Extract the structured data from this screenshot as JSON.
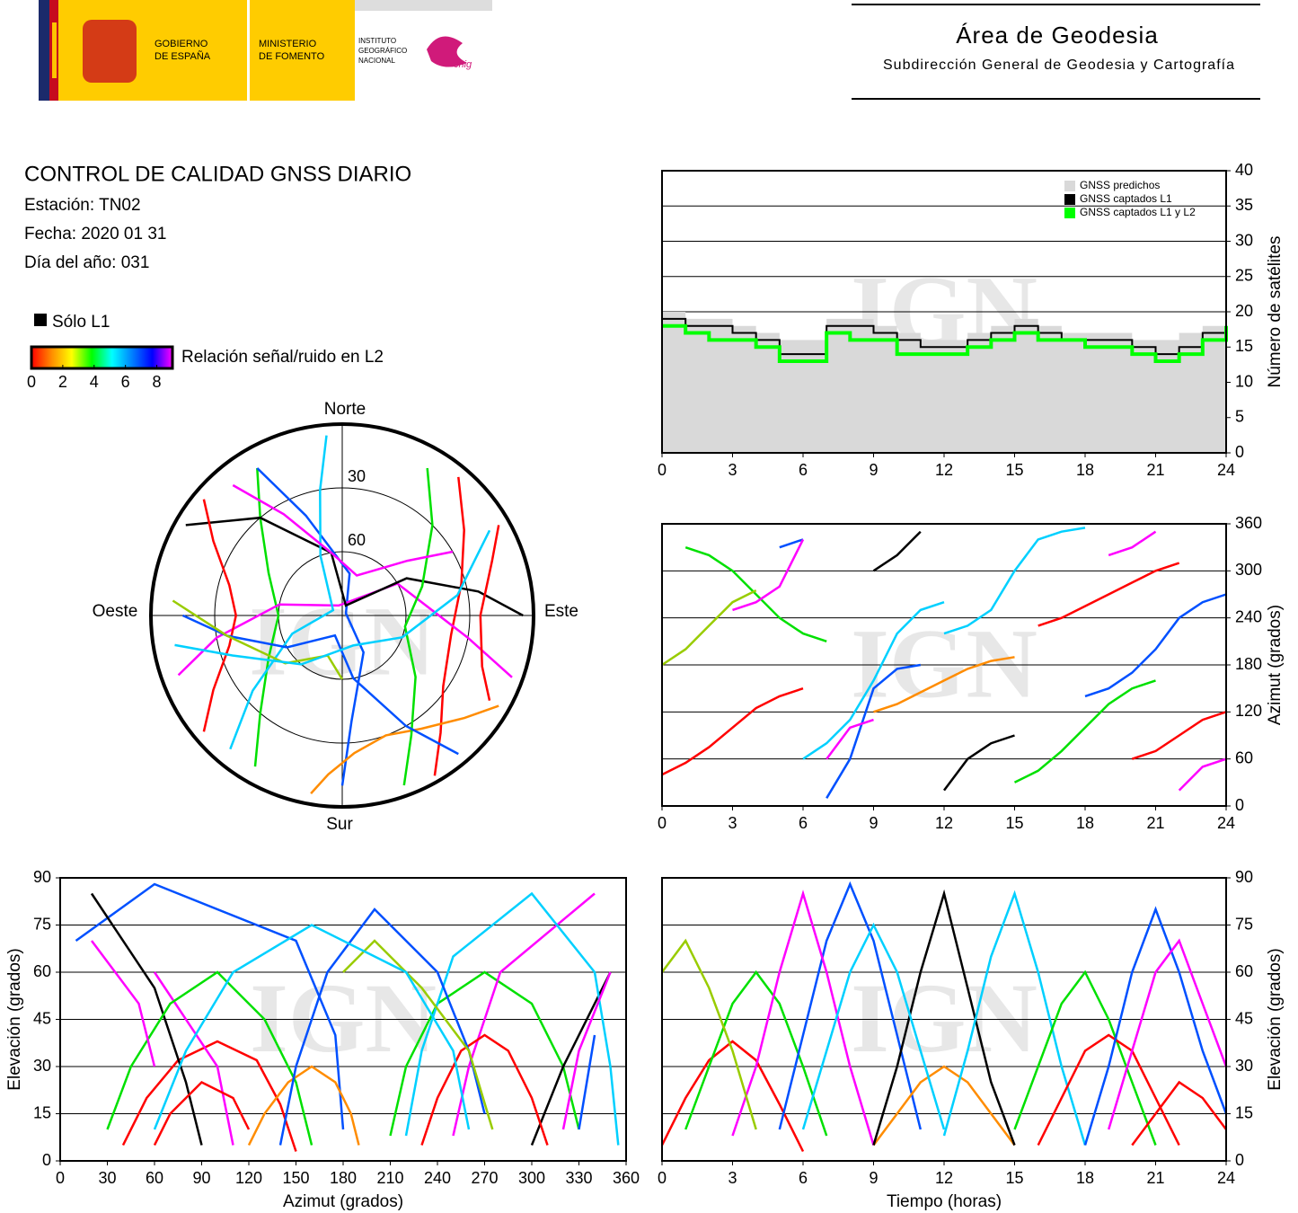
{
  "header": {
    "gobierno": [
      "GOBIERNO",
      "DE ESPAÑA"
    ],
    "ministerio": [
      "MINISTERIO",
      "DE FOMENTO"
    ],
    "instituto": [
      "INSTITUTO",
      "GEOGRÁFICO",
      "NACIONAL"
    ],
    "cnig": "cnig",
    "title": "Área de Geodesia",
    "subtitle": "Subdirección General de Geodesia y Cartografía"
  },
  "info": {
    "title": "CONTROL DE CALIDAD GNSS DIARIO",
    "lines": [
      "Estación: TN02",
      "Fecha: 2020 01 31",
      "Día del año: 031"
    ]
  },
  "legend": {
    "l1_only": "Sólo L1",
    "colorbar_label": "Relación señal/ruido en L2",
    "colorbar_range": [
      0,
      9
    ],
    "colorbar_ticks": [
      0,
      2,
      4,
      6,
      8
    ],
    "colorbar_colors": [
      "#ff0000",
      "#ff8c00",
      "#ffff00",
      "#00ff00",
      "#00ffff",
      "#0080ff",
      "#0000ff",
      "#ff00ff"
    ]
  },
  "watermark": "IGN",
  "tracks": [
    {
      "color": "#ff0000",
      "time": [
        0,
        1,
        2,
        3,
        4,
        5,
        6
      ],
      "azimuth": [
        40,
        55,
        75,
        100,
        125,
        140,
        150
      ],
      "elevation": [
        5,
        20,
        32,
        38,
        32,
        18,
        3
      ]
    },
    {
      "color": "#00e000",
      "time": [
        1,
        2,
        3,
        4,
        5,
        6,
        7
      ],
      "azimuth": [
        330,
        320,
        300,
        270,
        240,
        220,
        210
      ],
      "elevation": [
        10,
        30,
        50,
        60,
        50,
        30,
        8
      ]
    },
    {
      "color": "#0050ff",
      "time": [
        5,
        6,
        7,
        8,
        9,
        10,
        11
      ],
      "azimuth": [
        330,
        340,
        10,
        60,
        150,
        175,
        180
      ],
      "elevation": [
        10,
        40,
        70,
        88,
        70,
        40,
        10
      ]
    },
    {
      "color": "#ff00ff",
      "time": [
        3,
        4,
        5,
        6,
        7,
        8,
        9
      ],
      "azimuth": [
        250,
        260,
        280,
        340,
        60,
        100,
        110
      ],
      "elevation": [
        8,
        30,
        60,
        85,
        60,
        30,
        5
      ]
    },
    {
      "color": "#ff8c00",
      "time": [
        9,
        10,
        11,
        12,
        13,
        14,
        15
      ],
      "azimuth": [
        120,
        130,
        145,
        160,
        175,
        185,
        190
      ],
      "elevation": [
        5,
        15,
        25,
        30,
        25,
        15,
        5
      ]
    },
    {
      "color": "#000000",
      "time": [
        9,
        10,
        11,
        12,
        13,
        14,
        15
      ],
      "azimuth": [
        300,
        320,
        350,
        20,
        60,
        80,
        90
      ],
      "elevation": [
        5,
        30,
        60,
        85,
        55,
        25,
        5
      ]
    },
    {
      "color": "#00d0ff",
      "time": [
        12,
        13,
        14,
        15,
        16,
        17,
        18
      ],
      "azimuth": [
        220,
        230,
        250,
        300,
        340,
        350,
        355
      ],
      "elevation": [
        8,
        35,
        65,
        85,
        60,
        30,
        5
      ]
    },
    {
      "color": "#00e000",
      "time": [
        15,
        16,
        17,
        18,
        19,
        20,
        21
      ],
      "azimuth": [
        30,
        45,
        70,
        100,
        130,
        150,
        160
      ],
      "elevation": [
        10,
        30,
        50,
        60,
        45,
        25,
        5
      ]
    },
    {
      "color": "#ff0000",
      "time": [
        16,
        17,
        18,
        19,
        20,
        21,
        22
      ],
      "azimuth": [
        230,
        240,
        255,
        270,
        285,
        300,
        310
      ],
      "elevation": [
        5,
        20,
        35,
        40,
        35,
        20,
        5
      ]
    },
    {
      "color": "#0050ff",
      "time": [
        18,
        19,
        20,
        21,
        22,
        23,
        24
      ],
      "azimuth": [
        140,
        150,
        170,
        200,
        240,
        260,
        270
      ],
      "elevation": [
        5,
        30,
        60,
        80,
        60,
        35,
        15
      ]
    },
    {
      "color": "#ff00ff",
      "time": [
        19,
        20,
        21,
        22,
        23,
        24
      ],
      "azimuth": [
        320,
        330,
        350,
        20,
        50,
        60
      ],
      "elevation": [
        10,
        35,
        60,
        70,
        50,
        30
      ]
    },
    {
      "color": "#99cc00",
      "time": [
        0,
        1,
        2,
        3,
        4
      ],
      "azimuth": [
        180,
        200,
        230,
        260,
        275
      ],
      "elevation": [
        60,
        70,
        55,
        35,
        10
      ]
    },
    {
      "color": "#ff0000",
      "time": [
        20,
        21,
        22,
        23,
        24
      ],
      "azimuth": [
        60,
        70,
        90,
        110,
        120
      ],
      "elevation": [
        5,
        15,
        25,
        20,
        10
      ]
    },
    {
      "color": "#00d0ff",
      "time": [
        6,
        7,
        8,
        9,
        10,
        11,
        12
      ],
      "azimuth": [
        60,
        80,
        110,
        160,
        220,
        250,
        260
      ],
      "elevation": [
        10,
        35,
        60,
        75,
        60,
        35,
        10
      ]
    }
  ],
  "chart_data": [
    {
      "type": "step",
      "x": [
        0,
        1,
        2,
        3,
        4,
        5,
        6,
        7,
        8,
        9,
        10,
        11,
        12,
        13,
        14,
        15,
        16,
        17,
        18,
        19,
        20,
        21,
        22,
        23,
        24
      ],
      "series": [
        {
          "name": "GNSS predichos",
          "color": "#d9d9d9",
          "values": [
            20,
            19,
            19,
            18,
            17,
            16,
            16,
            19,
            19,
            18,
            17,
            16,
            16,
            17,
            18,
            19,
            18,
            17,
            17,
            17,
            16,
            16,
            17,
            18,
            20
          ]
        },
        {
          "name": "GNSS captados L1",
          "color": "#000000",
          "values": [
            19,
            18,
            18,
            17,
            16,
            14,
            14,
            18,
            18,
            17,
            16,
            15,
            15,
            16,
            17,
            18,
            17,
            16,
            16,
            16,
            15,
            14,
            15,
            17,
            19
          ]
        },
        {
          "name": "GNSS captados L1 y L2",
          "color": "#00ff00",
          "values": [
            18,
            17,
            16,
            16,
            15,
            13,
            13,
            17,
            16,
            16,
            14,
            14,
            14,
            15,
            16,
            17,
            16,
            16,
            15,
            15,
            14,
            13,
            14,
            16,
            18
          ]
        }
      ],
      "xlim": [
        0,
        24
      ],
      "xticks": [
        0,
        3,
        6,
        9,
        12,
        15,
        18,
        21,
        24
      ],
      "ylim": [
        0,
        40
      ],
      "yticks": [
        0,
        5,
        10,
        15,
        20,
        25,
        30,
        35,
        40
      ],
      "y_label": "Número de satélites",
      "y_axis": "right",
      "grid": true,
      "legend": "upper right"
    },
    {
      "type": "skyplot",
      "directions": [
        "Norte",
        "Este",
        "Sur",
        "Oeste"
      ],
      "rlim": [
        0,
        90
      ],
      "rticks": [
        30,
        60
      ]
    },
    {
      "type": "azimuthtime",
      "xlim": [
        0,
        24
      ],
      "xticks": [
        0,
        3,
        6,
        9,
        12,
        15,
        18,
        21,
        24
      ],
      "ylim": [
        0,
        360
      ],
      "yticks": [
        0,
        60,
        120,
        180,
        240,
        300,
        360
      ],
      "y_label": "Azimut (grados)",
      "y_axis": "right",
      "grid": true
    },
    {
      "type": "elevationazimuth",
      "xlim": [
        0,
        360
      ],
      "xticks": [
        0,
        30,
        60,
        90,
        120,
        150,
        180,
        210,
        240,
        270,
        300,
        330,
        360
      ],
      "ylim": [
        0,
        90
      ],
      "yticks": [
        0,
        15,
        30,
        45,
        60,
        75,
        90
      ],
      "x_label": "Azimut (grados)",
      "y_label": "Elevación (grados)",
      "y_axis": "left",
      "grid": true
    },
    {
      "type": "elevationtime",
      "xlim": [
        0,
        24
      ],
      "xticks": [
        0,
        3,
        6,
        9,
        12,
        15,
        18,
        21,
        24
      ],
      "ylim": [
        0,
        90
      ],
      "yticks": [
        0,
        15,
        30,
        45,
        60,
        75,
        90
      ],
      "x_label": "Tiempo (horas)",
      "y_label": "Elevación (grados)",
      "y_axis": "right",
      "grid": true
    }
  ]
}
